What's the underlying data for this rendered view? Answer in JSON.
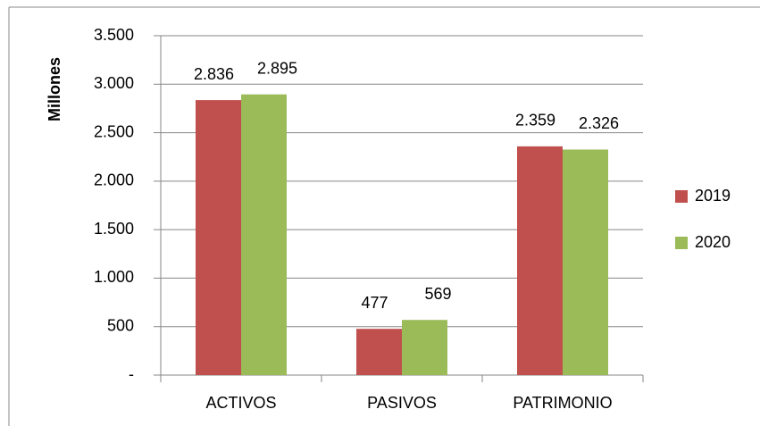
{
  "chart_data": {
    "type": "bar",
    "y_label": "Millones",
    "categories": [
      "ACTIVOS",
      "PASIVOS",
      "PATRIMONIO"
    ],
    "series": [
      {
        "name": "2019",
        "color": "#c0504d",
        "values": [
          2836,
          477,
          2359
        ],
        "value_labels": [
          "2.836",
          "477",
          "2.359"
        ]
      },
      {
        "name": "2020",
        "color": "#9bbb59",
        "values": [
          2895,
          569,
          2326
        ],
        "value_labels": [
          "2.895",
          "569",
          "2.326"
        ]
      }
    ],
    "ylim": [
      0,
      3500
    ],
    "yticks": [
      {
        "value": 0,
        "label": "-"
      },
      500,
      {
        "value": 1000,
        "label": "1.000"
      },
      {
        "value": 1500,
        "label": "1.500"
      },
      {
        "value": 2000,
        "label": "2.000"
      },
      {
        "value": 2500,
        "label": "2.500"
      },
      {
        "value": 3000,
        "label": "3.000"
      },
      {
        "value": 3500,
        "label": "3.500"
      }
    ],
    "grid": true,
    "legend": "right"
  }
}
